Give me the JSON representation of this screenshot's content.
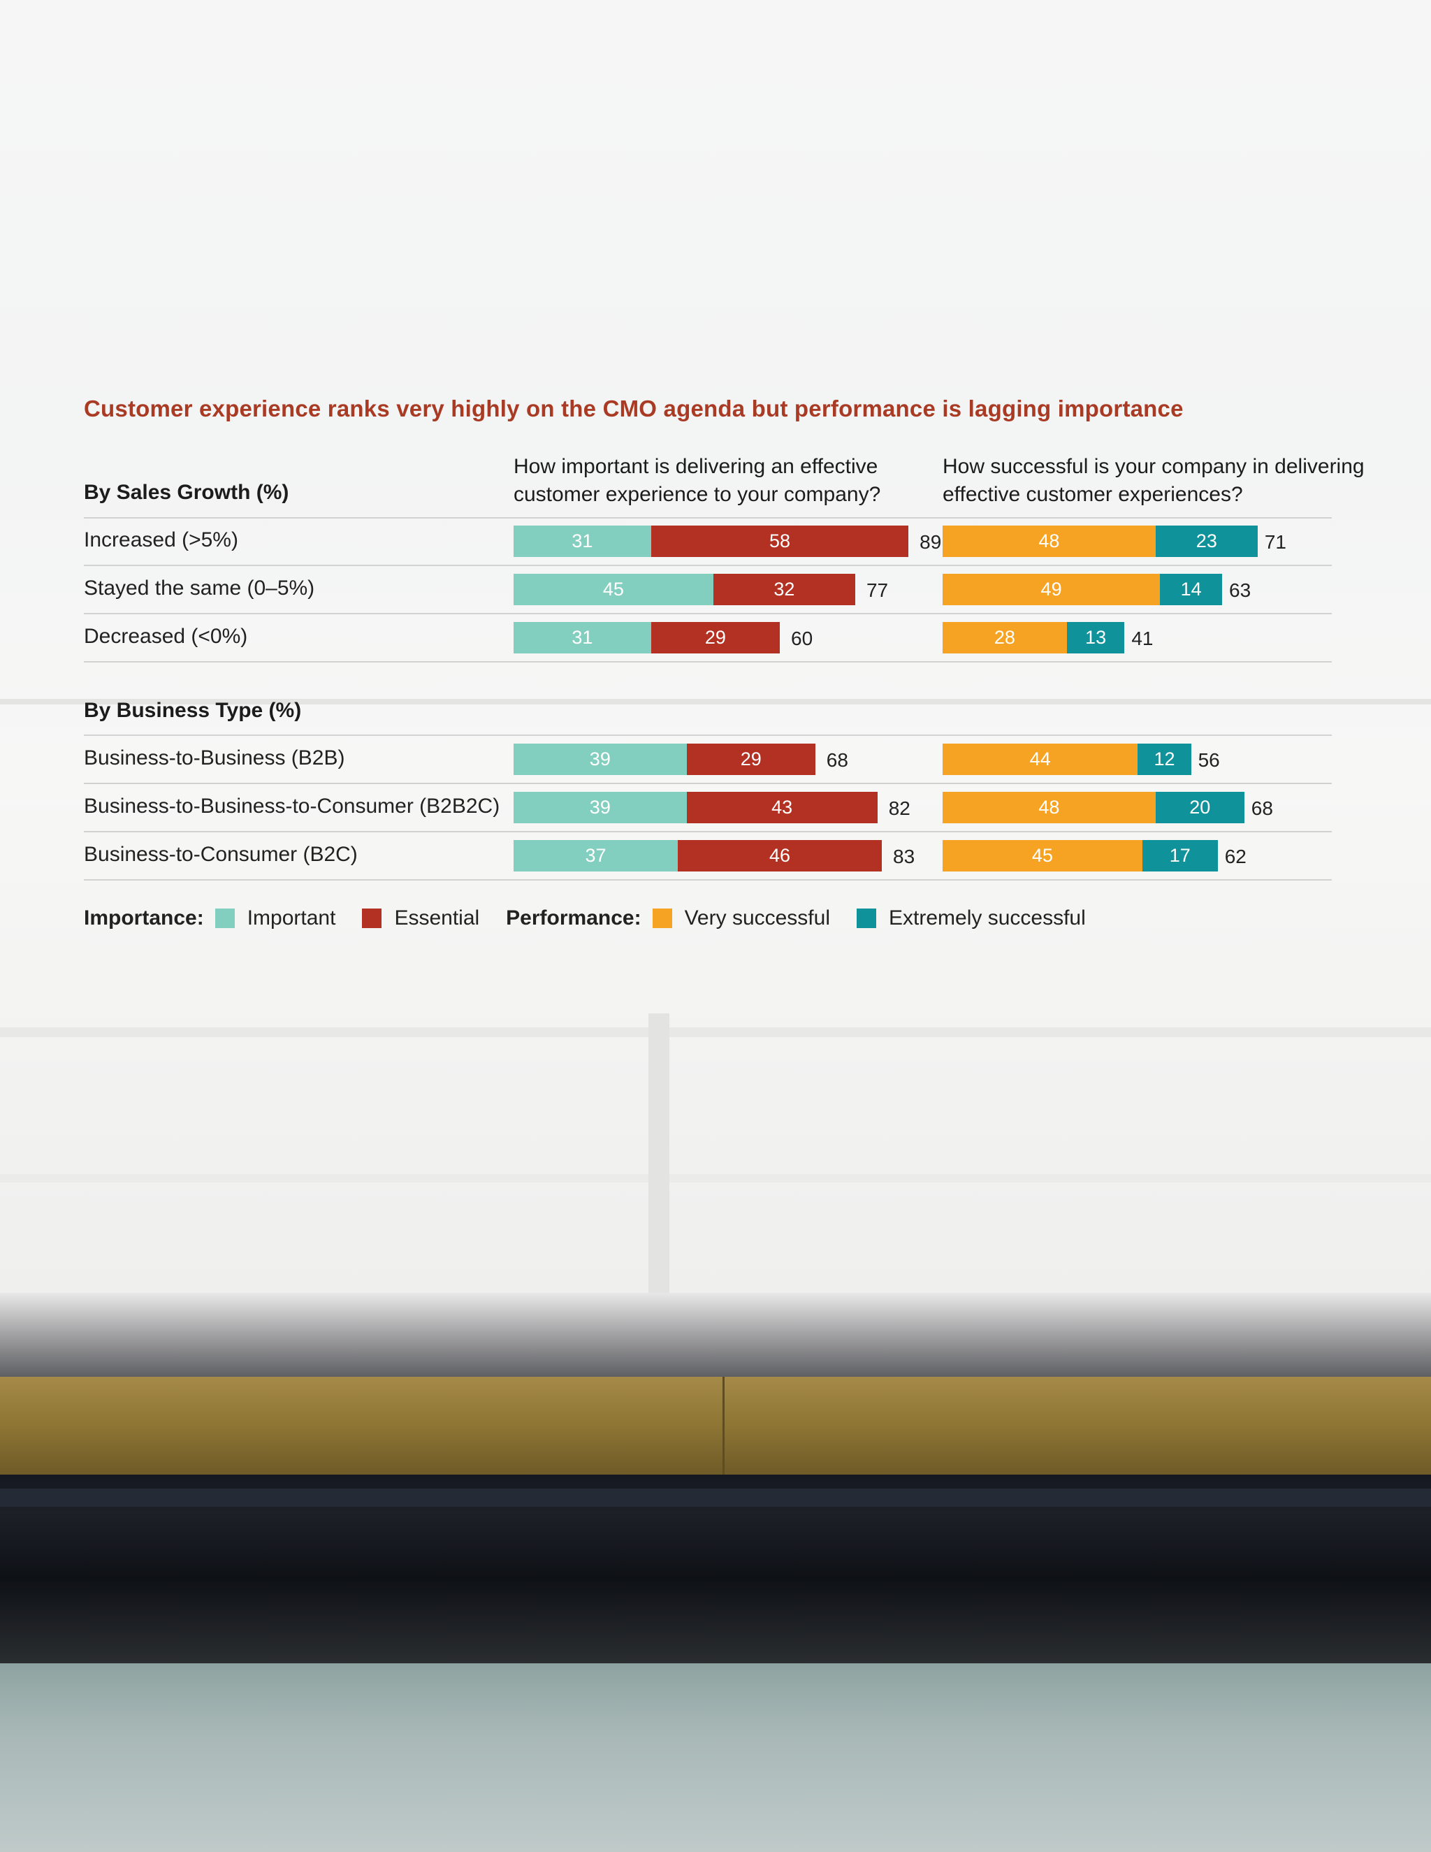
{
  "colors": {
    "important": "#83cfbf",
    "essential": "#b23122",
    "very_successful": "#f6a323",
    "extremely_successful": "#0f9299",
    "title": "#a93a23"
  },
  "chart_data": {
    "type": "bar",
    "stacked": true,
    "orientation": "horizontal",
    "title": "Customer experience ranks very highly on the CMO agenda but performance is lagging importance",
    "panels": [
      {
        "heading": "How important is delivering an effective customer experience to your company?",
        "legend_group": "Importance:",
        "series_names": [
          "Important",
          "Essential"
        ]
      },
      {
        "heading": "How successful is your company in delivering effective customer experiences?",
        "legend_group": "Performance:",
        "series_names": [
          "Very successful",
          "Extremely successful"
        ]
      }
    ],
    "groups": [
      {
        "label": "By Sales Growth (%)",
        "rows": [
          {
            "label": "Increased (>5%)",
            "importance": [
              31,
              58
            ],
            "importance_total": 89,
            "performance": [
              48,
              23
            ],
            "performance_total": 71
          },
          {
            "label": "Stayed the same (0–5%)",
            "importance": [
              45,
              32
            ],
            "importance_total": 77,
            "performance": [
              49,
              14
            ],
            "performance_total": 63
          },
          {
            "label": "Decreased (<0%)",
            "importance": [
              31,
              29
            ],
            "importance_total": 60,
            "performance": [
              28,
              13
            ],
            "performance_total": 41
          }
        ]
      },
      {
        "label": "By Business Type (%)",
        "rows": [
          {
            "label": "Business-to-Business (B2B)",
            "importance": [
              39,
              29
            ],
            "importance_total": 68,
            "performance": [
              44,
              12
            ],
            "performance_total": 56
          },
          {
            "label": "Business-to-Business-to-Consumer (B2B2C)",
            "importance": [
              39,
              43
            ],
            "importance_total": 82,
            "performance": [
              48,
              20
            ],
            "performance_total": 68
          },
          {
            "label": "Business-to-Consumer (B2C)",
            "importance": [
              37,
              46
            ],
            "importance_total": 83,
            "performance": [
              45,
              17
            ],
            "performance_total": 62
          }
        ]
      }
    ]
  }
}
